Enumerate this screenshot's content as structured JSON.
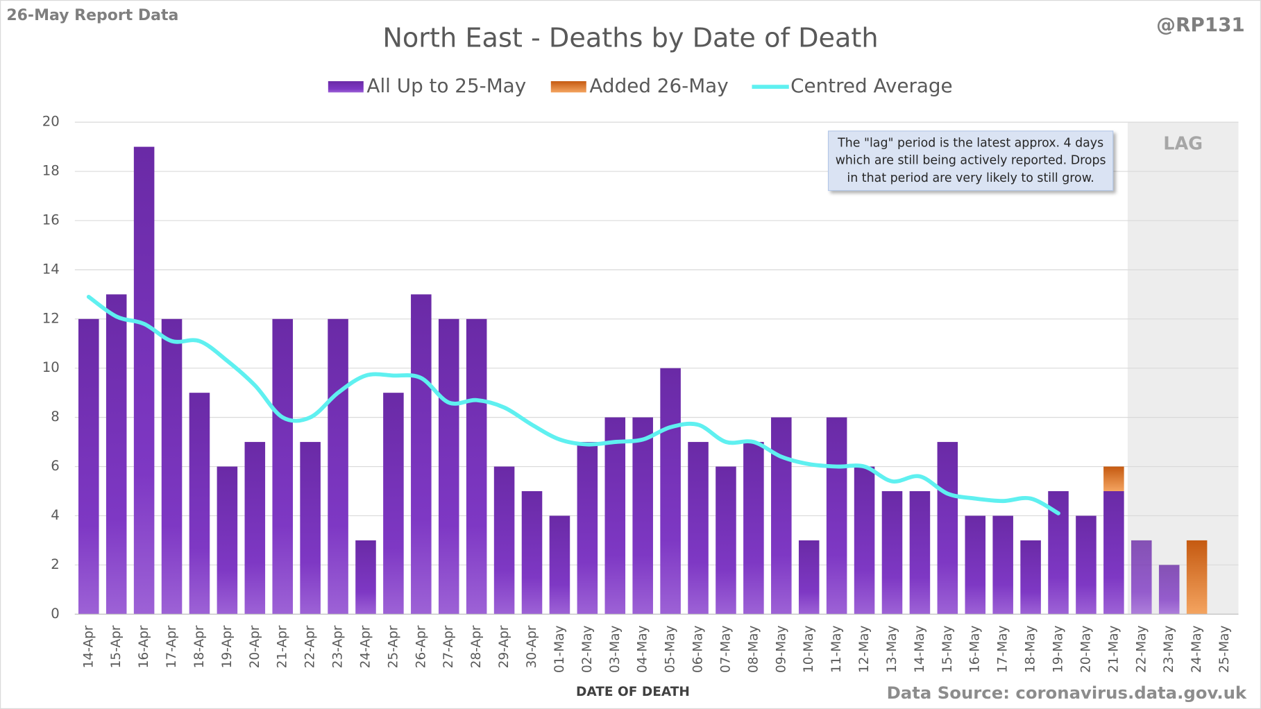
{
  "chart_data": {
    "type": "bar",
    "header": "26-May Report Data",
    "handle": "@RP131",
    "title": "North East - Deaths by Date of Death",
    "x_label": "DATE OF DEATH",
    "source": "Data Source: coronavirus.data.gov.uk",
    "lag_label": "LAG",
    "annotation": [
      "The \"lag\" period is the latest approx. 4 days",
      "which are still being actively reported.  Drops",
      "in that period are very likely to still grow."
    ],
    "categories": [
      "14-Apr",
      "15-Apr",
      "16-Apr",
      "17-Apr",
      "18-Apr",
      "19-Apr",
      "20-Apr",
      "21-Apr",
      "22-Apr",
      "23-Apr",
      "24-Apr",
      "25-Apr",
      "26-Apr",
      "27-Apr",
      "28-Apr",
      "29-Apr",
      "30-Apr",
      "01-May",
      "02-May",
      "03-May",
      "04-May",
      "05-May",
      "06-May",
      "07-May",
      "08-May",
      "09-May",
      "10-May",
      "11-May",
      "12-May",
      "13-May",
      "14-May",
      "15-May",
      "16-May",
      "17-May",
      "18-May",
      "19-May",
      "20-May",
      "21-May",
      "22-May",
      "23-May",
      "24-May",
      "25-May"
    ],
    "series": [
      {
        "name": "All Up to 25-May",
        "color": "#7a32b8",
        "kind": "bar",
        "values": [
          12,
          13,
          19,
          12,
          9,
          6,
          7,
          12,
          7,
          12,
          3,
          9,
          13,
          12,
          12,
          6,
          5,
          4,
          7,
          8,
          8,
          10,
          7,
          6,
          7,
          8,
          3,
          8,
          6,
          5,
          5,
          7,
          4,
          4,
          3,
          5,
          4,
          5,
          3,
          2,
          0,
          0
        ]
      },
      {
        "name": "Added 26-May",
        "color": "#e46c0a",
        "kind": "bar",
        "values": [
          0,
          0,
          0,
          0,
          0,
          0,
          0,
          0,
          0,
          0,
          0,
          0,
          0,
          0,
          0,
          0,
          0,
          0,
          0,
          0,
          0,
          0,
          0,
          0,
          0,
          0,
          0,
          0,
          0,
          0,
          0,
          0,
          0,
          0,
          0,
          0,
          0,
          1,
          0,
          0,
          3,
          0
        ]
      },
      {
        "name": "Centred Average",
        "color": "#5ff0f0",
        "kind": "line",
        "values": [
          12.9,
          12.1,
          11.8,
          11.1,
          11.1,
          10.3,
          9.3,
          8.0,
          8.0,
          9.0,
          9.7,
          9.7,
          9.6,
          8.6,
          8.7,
          8.4,
          7.7,
          7.1,
          6.9,
          7.0,
          7.1,
          7.6,
          7.7,
          7.0,
          7.0,
          6.4,
          6.1,
          6.0,
          6.0,
          5.4,
          5.6,
          4.9,
          4.7,
          4.6,
          4.7,
          4.1,
          null,
          null,
          null,
          null,
          null,
          null
        ]
      }
    ],
    "ylim": [
      0,
      20
    ],
    "yticks": [
      0,
      2,
      4,
      6,
      8,
      10,
      12,
      14,
      16,
      18,
      20
    ],
    "grid": true
  }
}
